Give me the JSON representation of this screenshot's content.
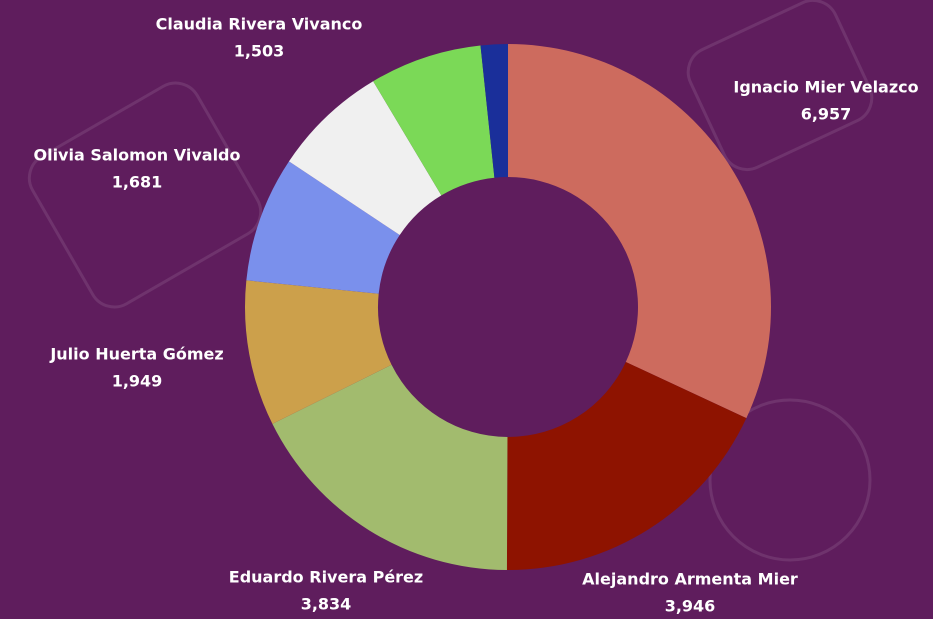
{
  "chart_data": {
    "type": "donut",
    "categories": [
      "Ignacio Mier Velazco",
      "Alejandro Armenta Mier",
      "Eduardo Rivera Pérez",
      "Julio Huerta Gómez",
      "Olivia Salomon Vivaldo",
      null,
      "Claudia Rivera Vivanco",
      null
    ],
    "values": [
      6957,
      3946,
      3834,
      1949,
      1681,
      1545,
      1503,
      363
    ],
    "value_labels": [
      "6,957",
      "3,946",
      "3,834",
      "1,949",
      "1,681",
      null,
      "1,503",
      null
    ],
    "colors": [
      "#cd6b5e",
      "#8e1300",
      "#a2bb6e",
      "#cca04b",
      "#7a90ec",
      "#f0f0f0",
      "#7bd957",
      "#1a2f9a"
    ]
  }
}
